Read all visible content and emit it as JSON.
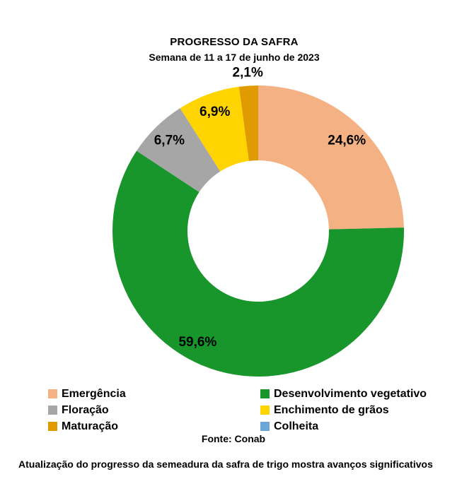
{
  "title": "PROGRESSO DA SAFRA",
  "subtitle": "Semana de 11 a 17 de junho de 2023",
  "source": "Fonte: Conab",
  "caption": "Atualização do progresso da semeadura da safra de trigo mostra avanços significativos",
  "chart_data": {
    "type": "pie",
    "donut": true,
    "title": "PROGRESSO DA SAFRA",
    "subtitle": "Semana de 11 a 17 de junho de 2023",
    "source_label": "Fonte: Conab",
    "start_angle_deg": 0,
    "direction": "clockwise",
    "legend_position": "bottom",
    "units": "%",
    "slices": [
      {
        "label": "Emergência",
        "value": 24.6,
        "display": "24,6%",
        "color": "#F4B183"
      },
      {
        "label": "Desenvolvimento vegetativo",
        "value": 59.6,
        "display": "59,6%",
        "color": "#18962B"
      },
      {
        "label": "Floração",
        "value": 6.7,
        "display": "6,7%",
        "color": "#A6A6A6"
      },
      {
        "label": "Enchimento de grãos",
        "value": 6.9,
        "display": "6,9%",
        "color": "#FFD400"
      },
      {
        "label": "Maturação",
        "value": 2.1,
        "display": "2,1%",
        "color": "#E09B00"
      },
      {
        "label": "Colheita",
        "value": 0,
        "display": "",
        "color": "#6CA6D9"
      }
    ]
  }
}
